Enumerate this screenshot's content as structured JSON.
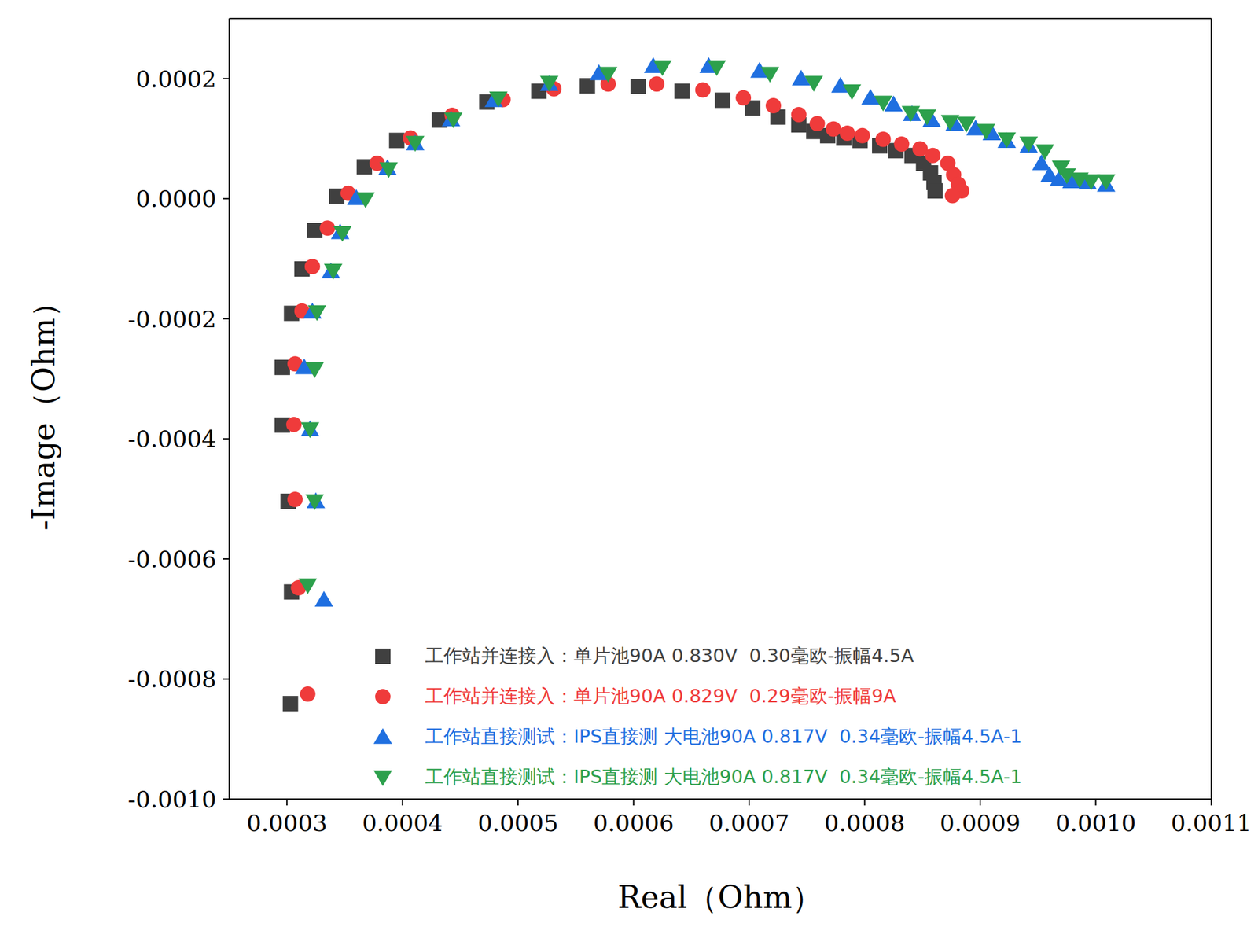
{
  "chart_data": {
    "type": "scatter",
    "x_label": "Real（Ohm）",
    "y_label": "-Image（Ohm）",
    "xlim": [
      0.00025,
      0.0011
    ],
    "ylim": [
      -0.001,
      0.0003
    ],
    "xticks": [
      {
        "value": 0.0003,
        "label": "0.0003"
      },
      {
        "value": 0.0004,
        "label": "0.0004"
      },
      {
        "value": 0.0005,
        "label": "0.0005"
      },
      {
        "value": 0.0006,
        "label": "0.0006"
      },
      {
        "value": 0.0007,
        "label": "0.0007"
      },
      {
        "value": 0.0008,
        "label": "0.0008"
      },
      {
        "value": 0.0009,
        "label": "0.0009"
      },
      {
        "value": 0.001,
        "label": "0.0010"
      },
      {
        "value": 0.0011,
        "label": "0.0011"
      }
    ],
    "yticks": [
      {
        "value": -0.001,
        "label": "-0.0010"
      },
      {
        "value": -0.0008,
        "label": "-0.0008"
      },
      {
        "value": -0.0006,
        "label": "-0.0006"
      },
      {
        "value": -0.0004,
        "label": "-0.0004"
      },
      {
        "value": -0.0002,
        "label": "-0.0002"
      },
      {
        "value": 0,
        "label": "0.0000"
      },
      {
        "value": 0.0002,
        "label": "0.0002"
      }
    ],
    "grid": false,
    "legend": "bottom right",
    "series": [
      {
        "name": "工作站并连接入：单片池90A 0.830V  0.30毫欧-振幅4.5A",
        "color": "#404040",
        "marker": "square",
        "x": [
          0.000303,
          0.000304,
          0.000301,
          0.000296,
          0.000296,
          0.000304,
          0.000313,
          0.000324,
          0.000343,
          0.000367,
          0.000395,
          0.000432,
          0.000473,
          0.000518,
          0.00056,
          0.000604,
          0.000642,
          0.000677,
          0.000703,
          0.000725,
          0.000743,
          0.000756,
          0.000768,
          0.000782,
          0.000796,
          0.000813,
          0.000827,
          0.000841,
          0.000851,
          0.000857,
          0.00086,
          0.000861
        ],
        "values": [
          -0.000841,
          -0.000655,
          -0.000504,
          -0.000377,
          -0.000281,
          -0.000191,
          -0.000117,
          -5.3e-05,
          4e-06,
          5.3e-05,
          9.7e-05,
          0.000131,
          0.000161,
          0.000179,
          0.000188,
          0.000187,
          0.000179,
          0.000164,
          0.000151,
          0.000136,
          0.000123,
          0.000112,
          0.000105,
          0.000101,
          9.7e-05,
          8.8e-05,
          8e-05,
          7.2e-05,
          5.9e-05,
          4.3e-05,
          2.7e-05,
          1.3e-05
        ]
      },
      {
        "name": "工作站并连接入：单片池90A 0.829V  0.29毫欧-振幅9A",
        "color": "#ef3b3b",
        "marker": "circle",
        "x": [
          0.000318,
          0.00031,
          0.000307,
          0.000306,
          0.000307,
          0.000313,
          0.000322,
          0.000335,
          0.000353,
          0.000378,
          0.000407,
          0.000443,
          0.000487,
          0.000531,
          0.000578,
          0.00062,
          0.00066,
          0.000695,
          0.000721,
          0.000743,
          0.000759,
          0.000773,
          0.000785,
          0.000798,
          0.000816,
          0.000832,
          0.000848,
          0.000859,
          0.000872,
          0.000877,
          0.000881,
          0.000884,
          0.000876
        ],
        "values": [
          -0.000825,
          -0.000648,
          -0.000501,
          -0.000376,
          -0.000275,
          -0.000187,
          -0.000113,
          -4.9e-05,
          9e-06,
          5.9e-05,
          0.000101,
          0.000139,
          0.000165,
          0.000183,
          0.000191,
          0.000191,
          0.000181,
          0.000168,
          0.000155,
          0.00014,
          0.000125,
          0.000116,
          0.000109,
          0.000105,
          9.9e-05,
          9.1e-05,
          8.3e-05,
          7.2e-05,
          5.9e-05,
          4e-05,
          2.4e-05,
          1.3e-05,
          5e-06
        ]
      },
      {
        "name": "工作站直接测试：IPS直接测 大电池90A 0.817V  0.34毫欧-振幅4.5A-1",
        "color": "#1f6fe0",
        "marker": "triangle_up",
        "x": [
          0.000332,
          0.000325,
          0.00032,
          0.000315,
          0.000322,
          0.000338,
          0.000346,
          0.00036,
          0.000387,
          0.000411,
          0.000442,
          0.000479,
          0.000527,
          0.00057,
          0.000617,
          0.000665,
          0.000709,
          0.000745,
          0.000779,
          0.000805,
          0.000825,
          0.000841,
          0.000858,
          0.000878,
          0.000896,
          0.00091,
          0.000923,
          0.000942,
          0.000953,
          0.00096,
          0.000968,
          0.000979,
          0.000993,
          0.001009
        ],
        "values": [
          -0.000668,
          -0.000504,
          -0.000384,
          -0.000281,
          -0.000188,
          -0.000121,
          -5.6e-05,
          1e-06,
          5.1e-05,
          9.2e-05,
          0.000132,
          0.000164,
          0.000191,
          0.000209,
          0.000221,
          0.000221,
          0.000213,
          0.0002,
          0.000188,
          0.000168,
          0.000157,
          0.000141,
          0.000131,
          0.000125,
          0.000117,
          0.000109,
          9.6e-05,
          8.8e-05,
          5.9e-05,
          3.9e-05,
          3.2e-05,
          2.9e-05,
          2.7e-05,
          2.3e-05
        ]
      },
      {
        "name": "工作站直接测试：IPS直接测 大电池90A 0.817V  0.34毫欧-振幅4.5A-1",
        "color": "#2ca04c",
        "marker": "triangle_down",
        "x": [
          0.000318,
          0.000324,
          0.00032,
          0.000324,
          0.000326,
          0.00034,
          0.000348,
          0.000368,
          0.000388,
          0.000411,
          0.000444,
          0.000483,
          0.000527,
          0.000578,
          0.000625,
          0.000672,
          0.000718,
          0.000756,
          0.000789,
          0.000816,
          0.00084,
          0.000854,
          0.000874,
          0.000888,
          0.000905,
          0.000923,
          0.000942,
          0.000956,
          0.00097,
          0.000975,
          0.000986,
          0.000996,
          0.001009
        ],
        "values": [
          -0.000644,
          -0.000504,
          -0.000384,
          -0.000284,
          -0.000189,
          -0.00012,
          -5.7e-05,
          -1e-06,
          4.9e-05,
          9.3e-05,
          0.000132,
          0.000167,
          0.000193,
          0.000208,
          0.000219,
          0.000219,
          0.000208,
          0.000193,
          0.000179,
          0.00016,
          0.000143,
          0.000137,
          0.000128,
          0.000125,
          0.000113,
          9.9e-05,
          9.2e-05,
          7.9e-05,
          5.2e-05,
          3.9e-05,
          3.2e-05,
          2.9e-05,
          2.9e-05
        ]
      }
    ]
  }
}
